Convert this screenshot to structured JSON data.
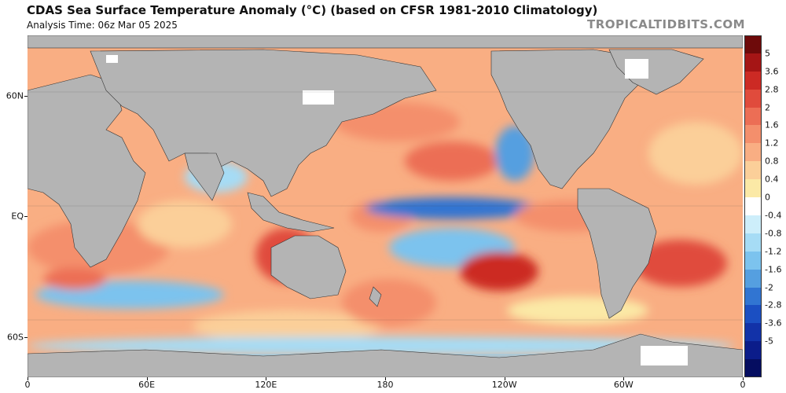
{
  "header": {
    "title": "CDAS Sea Surface Temperature Anomaly (°C) (based on CFSR 1981-2010 Climatology)",
    "subtitle": "Analysis Time: 06z Mar 05 2025",
    "credit": "TROPICALTIDBITS.COM"
  },
  "axes": {
    "lat_labels": [
      {
        "label": "60N",
        "lat": 60
      },
      {
        "label": "EQ",
        "lat": 0
      },
      {
        "label": "60S",
        "lat": -60
      }
    ],
    "lon_labels": [
      {
        "label": "0",
        "lon": 0
      },
      {
        "label": "60E",
        "lon": 60
      },
      {
        "label": "120E",
        "lon": 120
      },
      {
        "label": "180",
        "lon": 180
      },
      {
        "label": "120W",
        "lon": 240
      },
      {
        "label": "60W",
        "lon": 300
      },
      {
        "label": "0",
        "lon": 360
      }
    ],
    "lat_range": [
      -80,
      90
    ],
    "lon_range": [
      0,
      360
    ]
  },
  "colorbar": {
    "labels": [
      "5",
      "3.6",
      "2.8",
      "2",
      "1.6",
      "1.2",
      "0.8",
      "0.4",
      "0",
      "-0.4",
      "-0.8",
      "-1.2",
      "-1.6",
      "-2",
      "-2.8",
      "-3.6",
      "-5"
    ],
    "colors_top_to_bottom": [
      "#6e0a0a",
      "#a51515",
      "#cc2a24",
      "#e04b3c",
      "#ec6e55",
      "#f48f6c",
      "#f9ae83",
      "#fbcf99",
      "#fbe9a6",
      "#ffffff",
      "#cdeefa",
      "#a6dcf5",
      "#7cc3ee",
      "#559fe0",
      "#3175d2",
      "#1b4fc2",
      "#1232a8",
      "#0b1c8a",
      "#050d60"
    ],
    "land_color": "#b4b4b4"
  },
  "map_notes": {
    "features": [
      "cold tongue equatorial eastern Pacific",
      "warm anomalies North Pacific",
      "warm anomalies South Pacific",
      "warm Indian Ocean",
      "warm South Atlantic"
    ]
  }
}
